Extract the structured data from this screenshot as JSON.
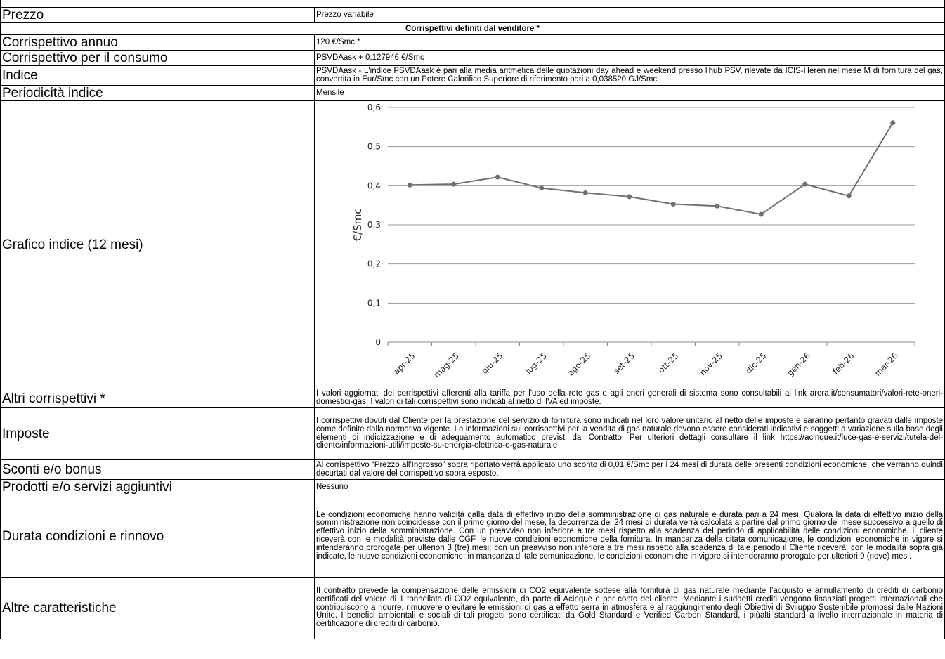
{
  "rows": {
    "prezzo": {
      "label": "Prezzo",
      "value": "Prezzo variabile"
    },
    "section_header": "Corrispettivi definiti dal venditore *",
    "annuo": {
      "label": "Corrispettivo annuo",
      "value": "120 €/Smc *"
    },
    "consumo": {
      "label": "Corrispettivo per il consumo",
      "value": "PSVDAask + 0,127946 €/Smc"
    },
    "indice": {
      "label": "Indice",
      "value": "PSVDAask - L'indice PSVDAask è pari alla media aritmetica delle quotazioni day ahead e weekend presso l'hub PSV, rilevate da ICIS-Heren nel mese M di fornitura del gas, convertita in Eur/Smc con un Potere Calorifico Superiore di riferimento pari a 0,038520 GJ/Smc"
    },
    "periodicita": {
      "label": "Periodicità indice",
      "value": "Mensile"
    },
    "grafico": {
      "label": "Grafico indice (12 mesi)"
    },
    "altri": {
      "label": "Altri corrispettivi *",
      "value": "I valori aggiornati dei corrispettivi afferenti alla tariffa per l'uso della rete gas e agli oneri generali di sistema sono consultabili al link arera.it/consumatori/valori-rete-oneri-domestici-gas. I valori di tali corrispettivi sono indicati al netto di IVA ed imposte."
    },
    "imposte": {
      "label": "Imposte",
      "value": "I corrispettivi dovuti dal Cliente per la prestazione del servizio di fornitura sono indicati nel loro valore unitario al netto delle imposte e saranno pertanto gravati dalle imposte come definite dalla normativa vigente. Le informazioni sui corrispettivi per la vendita di gas naturale devono essere considerati indicativi e soggetti a variazione sulla base degli elementi di indicizzazione e di adeguamento automatico previsti dal Contratto. Per ulteriori dettagli consultare il link https://acinque.it/luce-gas-e-servizi/tutela-del-cliente/informazioni-utili/imposte-su-energia-elettrica-e-gas-naturale"
    },
    "sconti": {
      "label": "Sconti e/o bonus",
      "value": "Al corrispettivo “Prezzo all'Ingrosso” sopra riportato verrà applicato uno sconto di 0,01 €/Smc per i 24 mesi di durata delle presenti condizioni economiche, che verranno quindi decurtati dal valore del corrispettivo sopra esposto."
    },
    "prodotti": {
      "label": "Prodotti e/o servizi aggiuntivi",
      "value": "Nessuno"
    },
    "durata": {
      "label": "Durata condizioni e rinnovo",
      "value": "Le condizioni economiche hanno validità dalla data di effettivo inizio della somministrazione di gas naturale e durata pari a 24 mesi. Qualora la data di effettivo inizio della somministrazione non coincidesse con il primo giorno del mese, la decorrenza dei 24 mesi di durata verrà calcolata a partire dal primo giorno del mese successivo a quello di effettivo inizio della somministrazione. Con un preavviso non inferiore a tre mesi rispetto alla scadenza del periodo di applicabilità delle condizioni economiche, il cliente riceverà con le modalità previste dalle CGF, le nuove condizioni economiche della fornitura. In mancanza della citata comunicazione, le condizioni economiche in vigore si intenderanno prorogate per ulteriori 3 (tre) mesi; con un preavviso non inferiore a tre mesi rispetto alla scadenza di tale periodo il Cliente riceverà, con le modalità sopra già indicate, le nuove condizioni economiche; in mancanza di tale comunicazione, le condizioni economiche in vigore si intenderanno prorogate per ulteriori 9 (nove) mesi."
    },
    "altre": {
      "label": "Altre caratteristiche",
      "value": "Il contratto prevede la compensazione delle emissioni di CO2 equivalente sottese alla fornitura di gas naturale mediante l’acquisto e annullamento di crediti di carbonio certificati del valore di 1 tonnellata di CO2 equivalente, da parte di Acinque e per conto del cliente. Mediante i suddetti crediti vengono finanziati progetti internazionali che contribuiscono a ridurre, rimuovere o evitare le emissioni di gas a effetto serra in atmosfera e al raggiungimento degli Obiettivi di Sviluppo Sostenibile promossi dalle Nazioni Unite. I benefici ambientali e sociali di tali progetti sono certificati da Gold Standard e Verified Carbon Standard, i piùalti standard a livello internazionale in materia di certificazione di crediti di carbonio."
    }
  },
  "chart_data": {
    "type": "line",
    "categories": [
      "apr-25",
      "mag-25",
      "giu-25",
      "lug-25",
      "ago-25",
      "set-25",
      "ott-25",
      "nov-25",
      "dic-25",
      "gen-26",
      "feb-26",
      "mar-26"
    ],
    "series": [
      {
        "values": [
          0.402,
          0.404,
          0.422,
          0.394,
          0.382,
          0.372,
          0.353,
          0.348,
          0.327,
          0.404,
          0.374,
          0.561
        ]
      }
    ],
    "ylabel": "€/Smc",
    "ylim": [
      0,
      0.6
    ],
    "yticks": [
      "0",
      "0,1",
      "0,2",
      "0,3",
      "0,4",
      "0,5",
      "0,6"
    ],
    "grid": true,
    "line_color": "#707070"
  }
}
